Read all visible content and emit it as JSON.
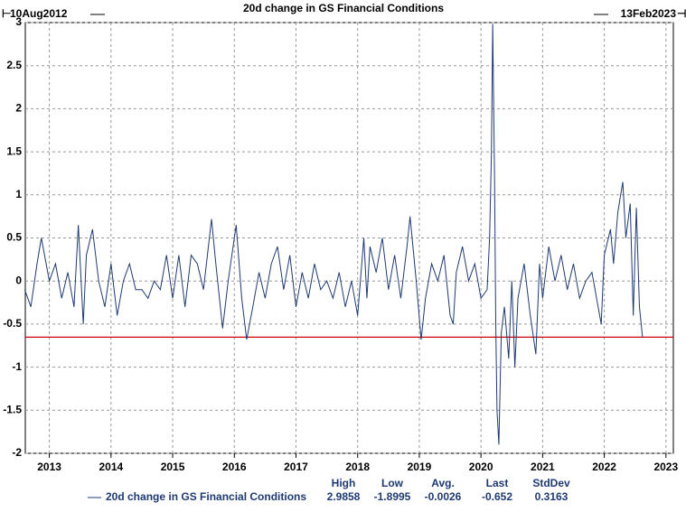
{
  "chart_data": {
    "type": "line",
    "title": "20d change in GS Financial Conditions",
    "start_label": "10Aug2012",
    "end_label": "13Feb2023",
    "x": [
      2012.6,
      2012.7,
      2012.8,
      2012.87,
      2013.0,
      2013.1,
      2013.2,
      2013.3,
      2013.4,
      2013.47,
      2013.55,
      2013.6,
      2013.7,
      2013.8,
      2013.9,
      2014.0,
      2014.1,
      2014.2,
      2014.3,
      2014.4,
      2014.5,
      2014.6,
      2014.7,
      2014.8,
      2014.9,
      2015.0,
      2015.1,
      2015.2,
      2015.3,
      2015.4,
      2015.5,
      2015.63,
      2015.7,
      2015.81,
      2015.9,
      2016.03,
      2016.12,
      2016.2,
      2016.3,
      2016.4,
      2016.5,
      2016.6,
      2016.7,
      2016.8,
      2016.9,
      2017.0,
      2017.1,
      2017.2,
      2017.3,
      2017.4,
      2017.5,
      2017.6,
      2017.7,
      2017.8,
      2017.9,
      2018.0,
      2018.1,
      2018.15,
      2018.2,
      2018.3,
      2018.4,
      2018.5,
      2018.6,
      2018.7,
      2018.8,
      2018.85,
      2018.95,
      2019.03,
      2019.1,
      2019.2,
      2019.3,
      2019.4,
      2019.5,
      2019.55,
      2019.6,
      2019.7,
      2019.8,
      2019.9,
      2020.0,
      2020.1,
      2020.14,
      2020.17,
      2020.19,
      2020.22,
      2020.24,
      2020.26,
      2020.29,
      2020.33,
      2020.38,
      2020.45,
      2020.5,
      2020.55,
      2020.6,
      2020.7,
      2020.8,
      2020.89,
      2020.95,
      2021.0,
      2021.1,
      2021.2,
      2021.3,
      2021.4,
      2021.5,
      2021.6,
      2021.7,
      2021.8,
      2021.9,
      2021.95,
      2022.0,
      2022.1,
      2022.15,
      2022.22,
      2022.3,
      2022.35,
      2022.42,
      2022.47,
      2022.52,
      2022.57,
      2022.62
    ],
    "series": [
      {
        "name": "20d change in GS Financial Conditions",
        "color": "#1f3a70",
        "values": [
          -0.1,
          -0.3,
          0.2,
          0.5,
          0.0,
          0.2,
          -0.2,
          0.1,
          -0.3,
          0.65,
          -0.5,
          0.3,
          0.6,
          0.0,
          -0.3,
          0.2,
          -0.4,
          0.0,
          0.2,
          -0.1,
          -0.1,
          -0.2,
          0.0,
          -0.1,
          0.3,
          -0.2,
          0.3,
          -0.3,
          0.3,
          0.2,
          -0.1,
          0.72,
          0.2,
          -0.55,
          0.0,
          0.65,
          -0.2,
          -0.68,
          -0.3,
          0.1,
          -0.2,
          0.2,
          0.4,
          -0.1,
          0.3,
          -0.3,
          0.1,
          -0.2,
          0.2,
          -0.1,
          0.0,
          -0.2,
          0.1,
          -0.3,
          0.0,
          -0.4,
          0.5,
          -0.2,
          0.4,
          0.1,
          0.5,
          -0.1,
          0.3,
          -0.2,
          0.4,
          0.75,
          0.0,
          -0.68,
          -0.2,
          0.2,
          0.0,
          0.3,
          -0.4,
          -0.5,
          0.1,
          0.4,
          0.0,
          0.2,
          -0.2,
          -0.1,
          0.5,
          1.5,
          2.9858,
          1.2,
          -0.5,
          -1.5,
          -1.8995,
          -0.6,
          -0.3,
          -0.9,
          0.0,
          -1.0,
          -0.2,
          0.2,
          -0.4,
          -0.85,
          0.2,
          -0.2,
          0.4,
          0.0,
          0.3,
          -0.1,
          0.2,
          -0.2,
          0.0,
          0.1,
          -0.3,
          -0.5,
          0.3,
          0.6,
          0.2,
          0.8,
          1.15,
          0.5,
          0.9,
          -0.4,
          0.85,
          -0.3,
          -0.652
        ]
      }
    ],
    "xlim": [
      2012.61,
      2023.12
    ],
    "xticks": [
      2013,
      2014,
      2015,
      2016,
      2017,
      2018,
      2019,
      2020,
      2021,
      2022,
      2023
    ],
    "ylim": [
      -2,
      3
    ],
    "yticks": [
      -2,
      -1.5,
      -1,
      -0.5,
      0,
      0.5,
      1,
      1.5,
      2,
      2.5,
      3
    ],
    "grid": true,
    "reference_color": "#cc0000",
    "stats": {
      "labels": [
        "High",
        "Low",
        "Avg.",
        "Last",
        "StdDev"
      ],
      "values": [
        2.9858,
        -1.8995,
        -0.0026,
        -0.652,
        0.3163
      ]
    }
  }
}
